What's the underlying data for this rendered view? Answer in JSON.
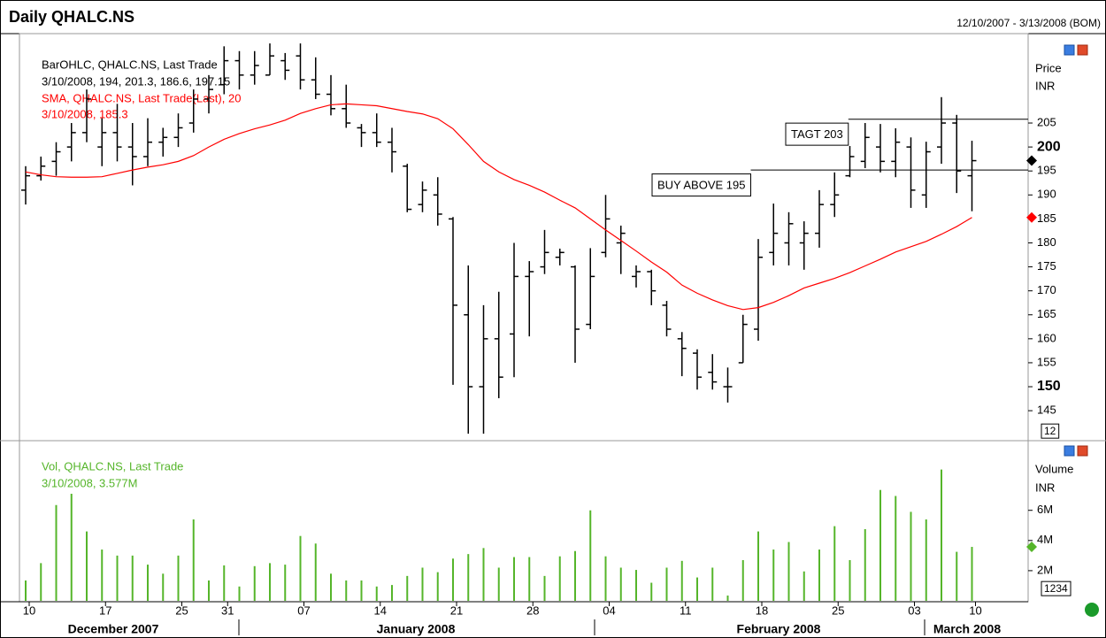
{
  "chart_data": [
    {
      "type": "ohlc",
      "title": "Daily QHALC.NS",
      "subtitle": "12/10/2007 - 3/13/2008 (BOM)",
      "name": "BarOHLC, QHALC.NS, Last Trade",
      "info": "3/10/2008, 194, 201.3, 186.6, 197.15",
      "axis_label": "Price",
      "unit": "INR",
      "color": "#000000",
      "open": [
        191,
        194,
        197,
        200,
        203,
        200,
        203,
        200,
        198,
        201,
        202,
        205,
        210,
        213,
        218,
        215,
        215,
        218,
        219,
        214,
        211,
        208,
        204,
        203,
        201,
        196,
        188,
        190,
        185,
        165,
        150,
        160,
        161,
        173,
        175,
        177,
        175,
        163,
        178,
        180,
        173,
        174,
        167,
        160,
        157,
        153,
        150,
        155,
        162,
        178,
        180,
        180,
        182,
        188,
        194,
        197,
        200,
        197,
        200,
        190,
        200,
        205,
        194
      ],
      "high": [
        196,
        198,
        201,
        205,
        212,
        206,
        209,
        205,
        206,
        204,
        207,
        212,
        215,
        221,
        220,
        220,
        221.6,
        219.6,
        221.6,
        218.7,
        215,
        213,
        204.8,
        207,
        204,
        196.5,
        192.8,
        193.7,
        185.4,
        175.3,
        167,
        169.8,
        180,
        176.2,
        182.7,
        178.8,
        175.3,
        178.9,
        190,
        183.6,
        175.3,
        174.4,
        167.9,
        161.4,
        157.8,
        156.8,
        154,
        165,
        180.8,
        188.2,
        186.4,
        184.5,
        191,
        194.7,
        200.2,
        205,
        204.8,
        203.9,
        202,
        201.1,
        210.4,
        206.7,
        201.3
      ],
      "low": [
        188,
        193,
        194,
        197,
        201,
        196,
        197,
        192,
        196,
        198,
        200,
        203,
        207,
        211,
        212,
        213,
        215,
        214,
        212,
        210,
        206.6,
        204,
        200,
        200,
        194.7,
        186.4,
        186.4,
        183.6,
        150.4,
        140.2,
        140.2,
        147.6,
        152,
        160.5,
        173.5,
        175.3,
        155,
        162,
        177,
        173.5,
        170.7,
        167,
        160.5,
        152.2,
        149.4,
        149.4,
        146.7,
        155,
        159.6,
        175.3,
        175.3,
        174.4,
        179,
        185.4,
        193.7,
        195.6,
        194.7,
        193.7,
        187.3,
        187.3,
        196.5,
        190.4,
        186.6
      ],
      "close": [
        194,
        196,
        199,
        203,
        210,
        203,
        200,
        198,
        201,
        202,
        204,
        210,
        212,
        218,
        215,
        217,
        219,
        216,
        214,
        211,
        208,
        205,
        203,
        201,
        199,
        187,
        191,
        186,
        167,
        150,
        160,
        152,
        173,
        174,
        178,
        178,
        162,
        173,
        185,
        182,
        174,
        170,
        162,
        158,
        152,
        151,
        150,
        163,
        177,
        182,
        184,
        182,
        188,
        190,
        198,
        202,
        197,
        201,
        191,
        199,
        205,
        195,
        197.15
      ],
      "sma": {
        "name": "SMA, QHALC.NS, Last Trade(Last),  20",
        "info": "3/10/2008, 185.3",
        "color": "#ff0000",
        "values": [
          194.8,
          194.2,
          193.8,
          193.7,
          193.7,
          193.8,
          194.5,
          195.2,
          195.8,
          196.3,
          197,
          198.2,
          200,
          201.6,
          202.8,
          203.8,
          204.6,
          205.6,
          207,
          208,
          208.8,
          209,
          208.8,
          208.6,
          208,
          207.4,
          206.9,
          205.9,
          203.8,
          200.5,
          197,
          194.8,
          193.2,
          192,
          190.6,
          188.9,
          187.3,
          185,
          182.7,
          180.5,
          178.3,
          176,
          173.9,
          171.2,
          169.5,
          168.1,
          166.9,
          166.1,
          166.5,
          167.6,
          169,
          170.6,
          171.6,
          172.6,
          173.8,
          175.2,
          176.6,
          178.1,
          179.2,
          180.3,
          181.8,
          183.4,
          185.3
        ]
      },
      "annotations": [
        {
          "text": "BUY ABOVE 195",
          "value": 195.2
        },
        {
          "text": "TAGT 203",
          "value": 205.8
        }
      ],
      "ylim": [
        139.3,
        221.8
      ],
      "yticks": [
        145,
        150,
        155,
        160,
        165,
        170,
        175,
        180,
        185,
        190,
        195,
        200,
        205
      ],
      "corner_label": "12"
    },
    {
      "type": "bar",
      "name": "Vol, QHALC.NS, Last Trade",
      "info": "3/10/2008, 3.577M",
      "axis_label": "Volume",
      "unit": "INR",
      "color": "#55b52a",
      "values": [
        1350000,
        2500000,
        6350000,
        7100000,
        4600000,
        3400000,
        3000000,
        3000000,
        2400000,
        1800000,
        3000000,
        5400000,
        1350000,
        2350000,
        950000,
        2300000,
        2500000,
        2400000,
        4300000,
        3800000,
        1800000,
        1350000,
        1350000,
        950000,
        1050000,
        1650000,
        2200000,
        1900000,
        2800000,
        3100000,
        3500000,
        2200000,
        2900000,
        2900000,
        1650000,
        2950000,
        3300000,
        6000000,
        2950000,
        2200000,
        2050000,
        1200000,
        2200000,
        2650000,
        1550000,
        2200000,
        350000,
        2700000,
        4600000,
        3400000,
        3900000,
        1950000,
        3400000,
        4950000,
        2700000,
        4750000,
        7350000,
        6950000,
        5900000,
        5400000,
        8700000,
        3250000,
        3577000
      ],
      "categories": [
        "10",
        null,
        null,
        null,
        null,
        "17",
        null,
        null,
        null,
        null,
        "25",
        null,
        null,
        "31",
        null,
        null,
        null,
        null,
        "07",
        null,
        null,
        null,
        null,
        "14",
        null,
        null,
        null,
        null,
        "21",
        null,
        null,
        null,
        null,
        "28",
        null,
        null,
        null,
        null,
        "04",
        null,
        null,
        null,
        null,
        "11",
        null,
        null,
        null,
        null,
        "18",
        null,
        null,
        null,
        null,
        "25",
        null,
        null,
        null,
        null,
        "03",
        null,
        null,
        null,
        "10"
      ],
      "months": [
        "December 2007",
        "January 2008",
        "February 2008",
        "March 2008"
      ],
      "ylim": [
        0,
        10500000
      ],
      "yticks": [
        {
          "value": 2000000,
          "label": "2M"
        },
        {
          "value": 4000000,
          "label": "4M"
        },
        {
          "value": 6000000,
          "label": "6M"
        }
      ],
      "corner_label": "1234"
    }
  ]
}
